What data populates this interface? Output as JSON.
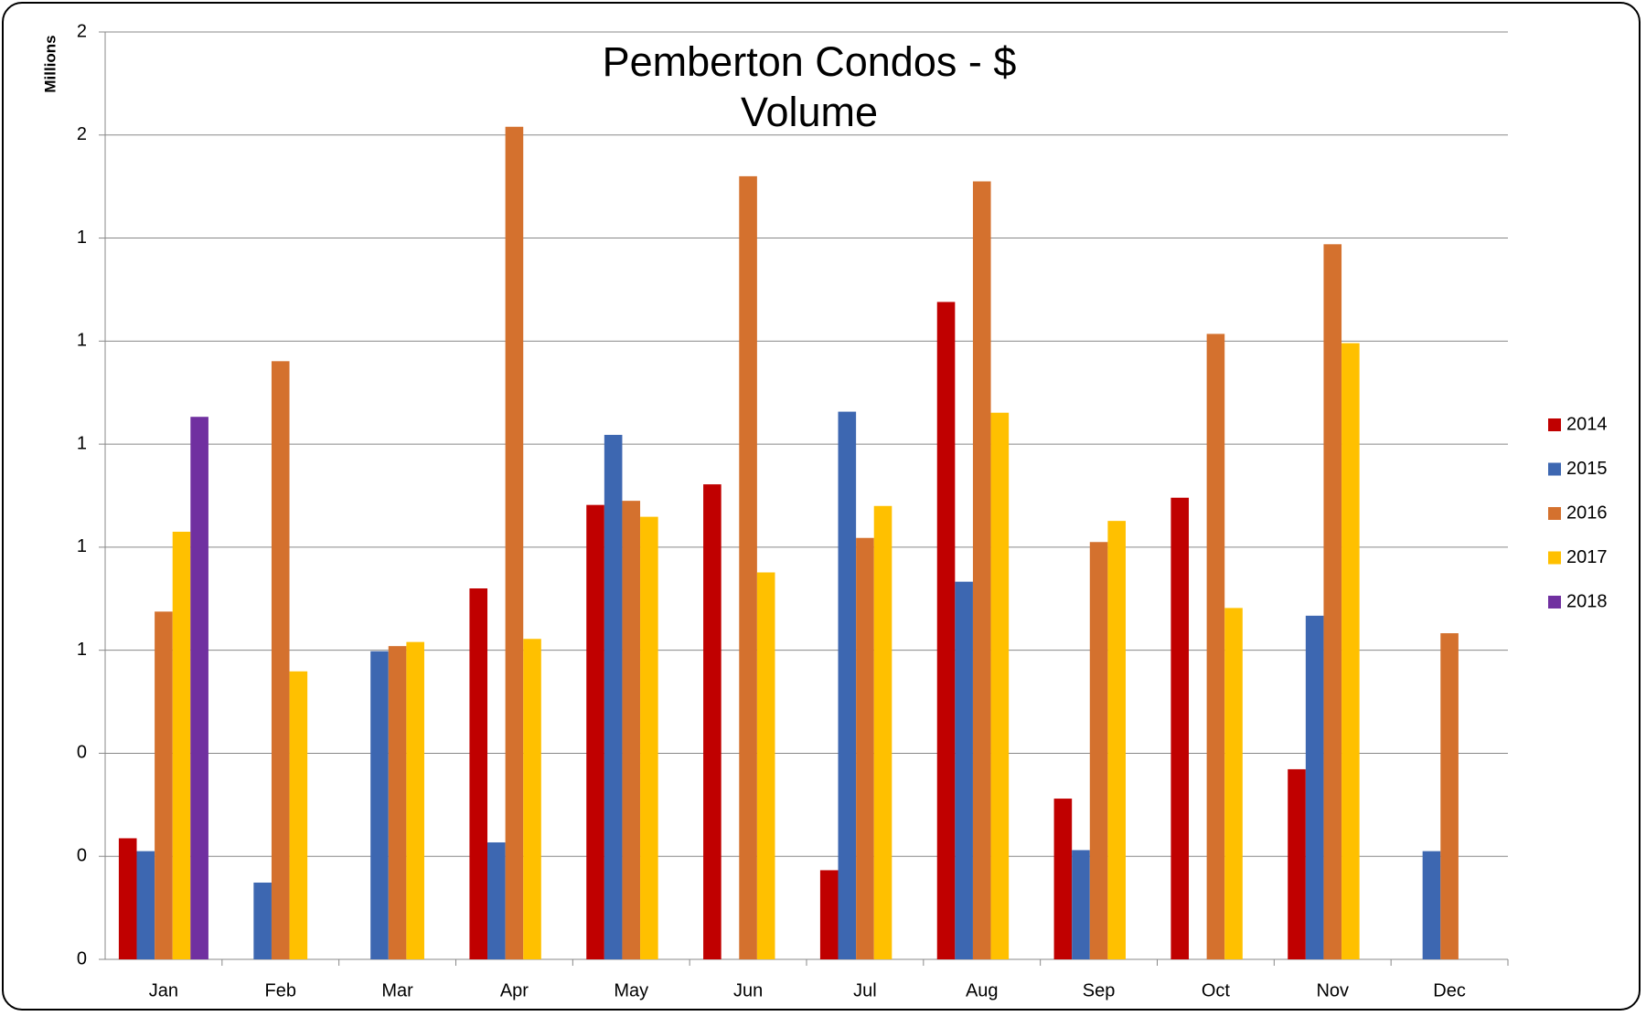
{
  "chart_data": {
    "type": "bar",
    "title": "Pemberton Condos - $ Volume",
    "y_label": "Millions",
    "categories": [
      "Jan",
      "Feb",
      "Mar",
      "Apr",
      "May",
      "Jun",
      "Jul",
      "Aug",
      "Sep",
      "Oct",
      "Nov",
      "Dec"
    ],
    "series": [
      {
        "name": "2014",
        "color": "#c00000",
        "values": [
          0.235,
          null,
          null,
          0.72,
          0.882,
          0.922,
          0.173,
          1.276,
          0.312,
          0.896,
          0.369,
          null
        ]
      },
      {
        "name": "2015",
        "color": "#3d67b1",
        "values": [
          0.21,
          0.149,
          0.598,
          0.227,
          1.018,
          null,
          1.063,
          0.733,
          0.212,
          null,
          0.667,
          0.21
        ]
      },
      {
        "name": "2016",
        "color": "#d4712e",
        "values": [
          0.675,
          1.161,
          0.608,
          1.616,
          0.89,
          1.52,
          0.818,
          1.51,
          0.81,
          1.214,
          1.388,
          0.633
        ]
      },
      {
        "name": "2017",
        "color": "#ffc000",
        "values": [
          0.83,
          0.559,
          0.616,
          0.622,
          0.859,
          0.751,
          0.88,
          1.061,
          0.851,
          0.682,
          1.196,
          null
        ]
      },
      {
        "name": "2018",
        "color": "#7030a0",
        "values": [
          1.053,
          null,
          null,
          null,
          null,
          null,
          null,
          null,
          null,
          null,
          null,
          null
        ]
      }
    ],
    "ylim": [
      0,
      1.8
    ],
    "yticks": [
      0,
      {
        "value": 0.2,
        "label": "0"
      },
      {
        "value": 0.4,
        "label": "0"
      },
      {
        "value": 0.6,
        "label": "1"
      },
      {
        "value": 0.8,
        "label": "1"
      },
      {
        "value": 1.0,
        "label": "1"
      },
      {
        "value": 1.2,
        "label": "1"
      },
      {
        "value": 1.4,
        "label": "1"
      },
      {
        "value": 1.6,
        "label": "2"
      },
      {
        "value": 1.8,
        "label": "2"
      }
    ],
    "grid": true,
    "legend": "right"
  }
}
